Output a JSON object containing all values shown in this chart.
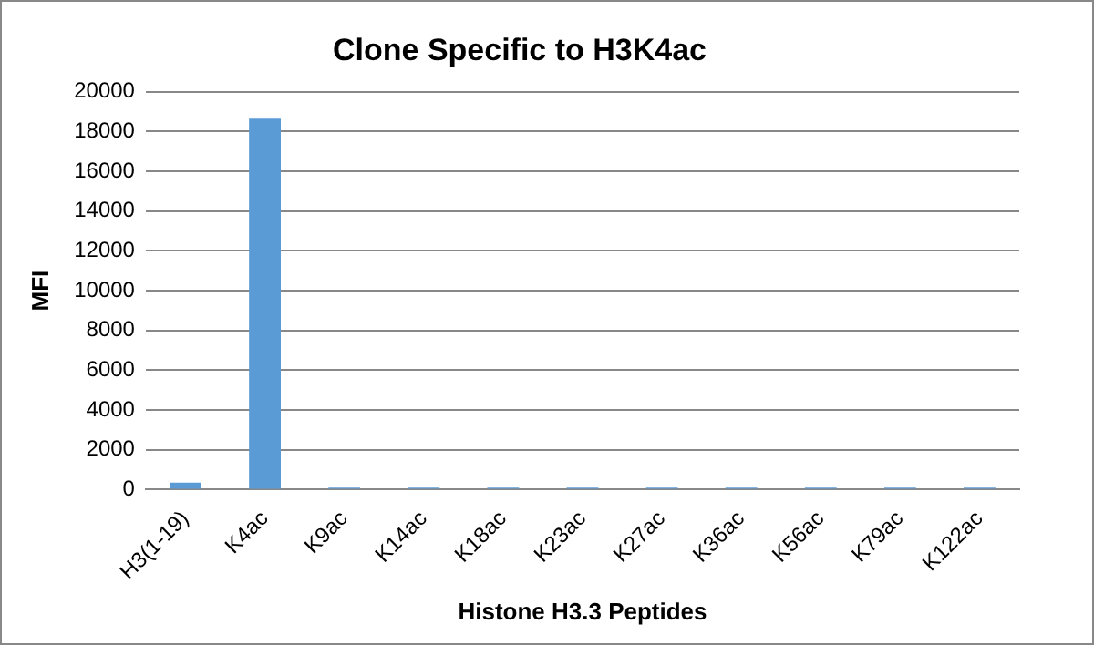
{
  "chart_data": {
    "type": "bar",
    "title": "Clone Specific to H3K4ac",
    "xlabel": "Histone H3.3 Peptides",
    "ylabel": "MFI",
    "categories": [
      "H3(1-19)",
      "K4ac",
      "K9ac",
      "K14ac",
      "K18ac",
      "K23ac",
      "K27ac",
      "K36ac",
      "K56ac",
      "K79ac",
      "K122ac"
    ],
    "values": [
      350,
      18650,
      100,
      100,
      100,
      100,
      100,
      100,
      100,
      100,
      100
    ],
    "color": "#5b9bd5",
    "ylim": [
      0,
      20000
    ],
    "yticks": [
      0,
      2000,
      4000,
      6000,
      8000,
      10000,
      12000,
      14000,
      16000,
      18000,
      20000
    ],
    "grid": "y"
  }
}
